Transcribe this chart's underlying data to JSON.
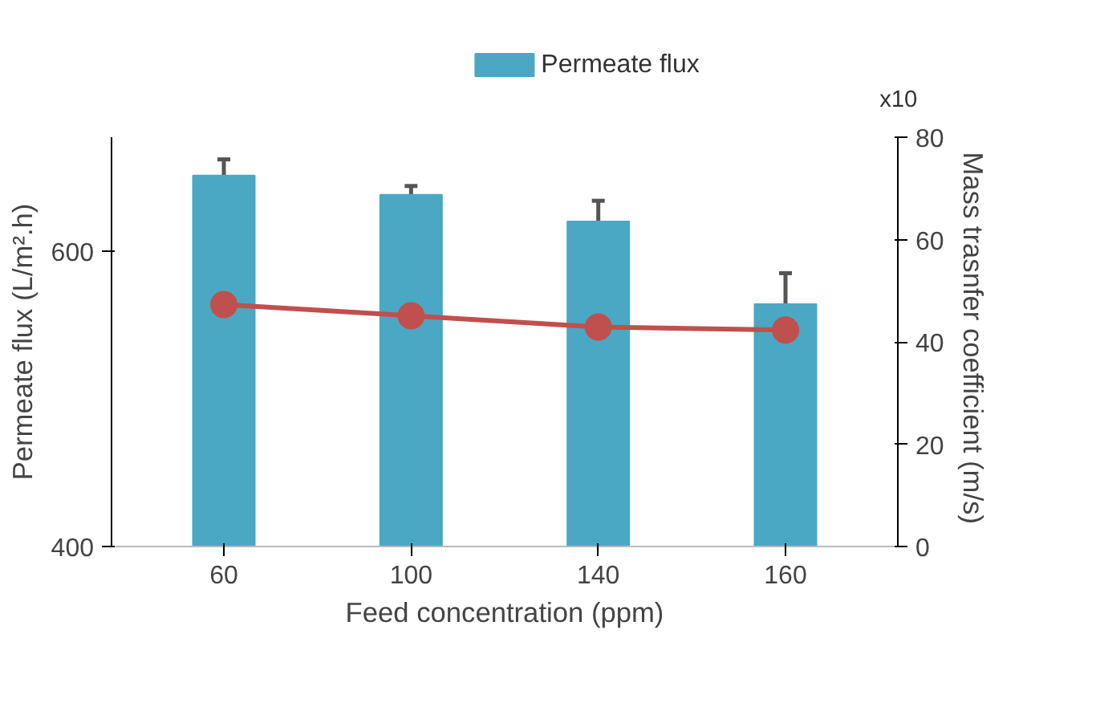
{
  "chart_data": {
    "type": "bar",
    "xlabel": "Feed concentration (ppm)",
    "ylabel": "Permeate flux (L/m².h)",
    "y2label": "Mass trasnfer coefficient  (m/s)",
    "categories": [
      "60",
      "100",
      "140",
      "160"
    ],
    "series": [
      {
        "name": "Permeate flux",
        "color": "#4aa8c4",
        "values": [
          651,
          638,
          620,
          564
        ],
        "errors": [
          11,
          6,
          14,
          21
        ]
      },
      {
        "type": "line",
        "axis": "y2",
        "color": "#c0504d",
        "values": [
          47.3,
          45.1,
          42.9,
          42.3
        ],
        "marker": "circle",
        "line_style": "solid"
      }
    ],
    "ylim": [
      400,
      677
    ],
    "yticks": [
      400,
      600
    ],
    "y2lim": [
      0,
      80
    ],
    "y2ticks": [
      0,
      20,
      40,
      60,
      80
    ],
    "annotations": [
      "x10"
    ],
    "grid": false,
    "legend": "top"
  }
}
